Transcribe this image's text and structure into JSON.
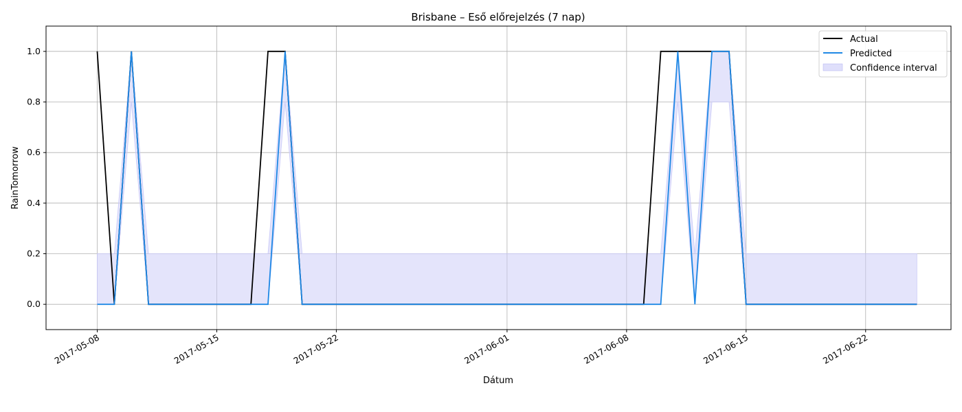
{
  "chart_data": {
    "type": "line",
    "title": "Brisbane – Eső előrejelzés (7 nap)",
    "xlabel": "Dátum",
    "ylabel": "RainTomorrow",
    "x_axis_type": "date",
    "xlim": [
      "2017-05-05",
      "2017-06-27"
    ],
    "ylim": [
      -0.1,
      1.1
    ],
    "x_ticks": [
      "2017-05-08",
      "2017-05-15",
      "2017-05-22",
      "2017-06-01",
      "2017-06-08",
      "2017-06-15",
      "2017-06-22"
    ],
    "y_ticks": [
      0.0,
      0.2,
      0.4,
      0.6,
      0.8,
      1.0
    ],
    "y_tick_labels": [
      "0.0",
      "0.2",
      "0.4",
      "0.6",
      "0.8",
      "1.0"
    ],
    "grid": true,
    "legend_position": "top-right",
    "x": [
      "2017-05-08",
      "2017-05-09",
      "2017-05-10",
      "2017-05-11",
      "2017-05-17",
      "2017-05-18",
      "2017-05-19",
      "2017-05-20",
      "2017-06-09",
      "2017-06-10",
      "2017-06-11",
      "2017-06-12",
      "2017-06-13",
      "2017-06-14",
      "2017-06-15",
      "2017-06-25"
    ],
    "series": [
      {
        "name": "Actual",
        "color": "#000000",
        "values": [
          1,
          0,
          1,
          0,
          0,
          1,
          1,
          0,
          0,
          1,
          1,
          1,
          1,
          1,
          0,
          0
        ]
      },
      {
        "name": "Predicted",
        "color": "#1e88e5",
        "values": [
          0,
          0,
          1,
          0,
          0,
          0,
          1,
          0,
          0,
          0,
          1,
          0,
          1,
          1,
          0,
          0
        ]
      }
    ],
    "confidence_interval": {
      "name": "Confidence interval",
      "color": "#c9c9f8",
      "lower": [
        0,
        0,
        0.8,
        0,
        0,
        0,
        0.8,
        0,
        0,
        0,
        0.8,
        0,
        0.8,
        0.8,
        0,
        0
      ],
      "upper": [
        0.2,
        0.2,
        1,
        0.2,
        0.2,
        0.2,
        1,
        0.2,
        0.2,
        0.2,
        1,
        0.2,
        1,
        1,
        0.2,
        0.2
      ]
    }
  }
}
